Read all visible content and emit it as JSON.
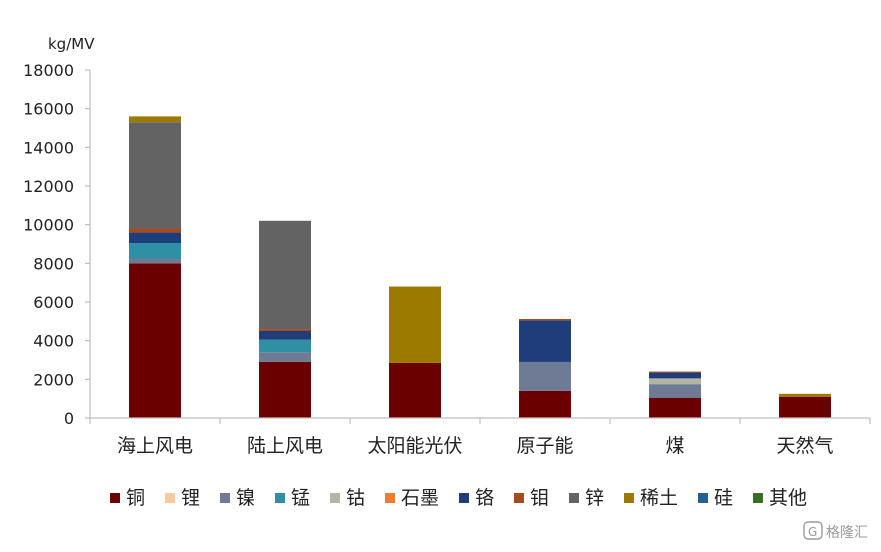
{
  "chart_data": {
    "type": "bar",
    "stacked": true,
    "unit_label": "kg/MV",
    "ylim": [
      0,
      18000
    ],
    "y_ticks": [
      0,
      2000,
      4000,
      6000,
      8000,
      10000,
      12000,
      14000,
      16000,
      18000
    ],
    "categories": [
      "海上风电",
      "陆上风电",
      "太阳能光伏",
      "原子能",
      "煤",
      "天然气"
    ],
    "series": [
      {
        "name": "铜",
        "color": "#6b0000",
        "values": [
          8000,
          2900,
          2850,
          1400,
          1050,
          1100
        ]
      },
      {
        "name": "锂",
        "color": "#f9c89b",
        "values": [
          0,
          0,
          0,
          0,
          0,
          0
        ]
      },
      {
        "name": "镍",
        "color": "#6f7a94",
        "values": [
          250,
          500,
          0,
          1500,
          700,
          0
        ]
      },
      {
        "name": "锰",
        "color": "#2f8fa3",
        "values": [
          800,
          650,
          0,
          0,
          0,
          0
        ]
      },
      {
        "name": "钴",
        "color": "#b5b5a5",
        "values": [
          0,
          0,
          0,
          0,
          300,
          0
        ]
      },
      {
        "name": "石墨",
        "color": "#ee7d31",
        "values": [
          0,
          0,
          0,
          0,
          0,
          0
        ]
      },
      {
        "name": "铬",
        "color": "#1f3d7a",
        "values": [
          550,
          450,
          0,
          2150,
          300,
          0
        ]
      },
      {
        "name": "钼",
        "color": "#a94a1b",
        "values": [
          200,
          100,
          0,
          70,
          50,
          0
        ]
      },
      {
        "name": "锌",
        "color": "#636363",
        "values": [
          5500,
          5600,
          0,
          0,
          0,
          0
        ]
      },
      {
        "name": "稀土",
        "color": "#9c7a00",
        "values": [
          300,
          0,
          3950,
          0,
          0,
          150
        ]
      },
      {
        "name": "硅",
        "color": "#255e91",
        "values": [
          0,
          0,
          0,
          0,
          0,
          0
        ]
      },
      {
        "name": "其他",
        "color": "#3b6e23",
        "values": [
          0,
          0,
          0,
          0,
          0,
          0
        ]
      }
    ],
    "legend_position": "bottom",
    "grid": false,
    "xlabel": "",
    "ylabel": ""
  },
  "watermark": {
    "text": "格隆汇",
    "icon": "logo-g-icon"
  }
}
